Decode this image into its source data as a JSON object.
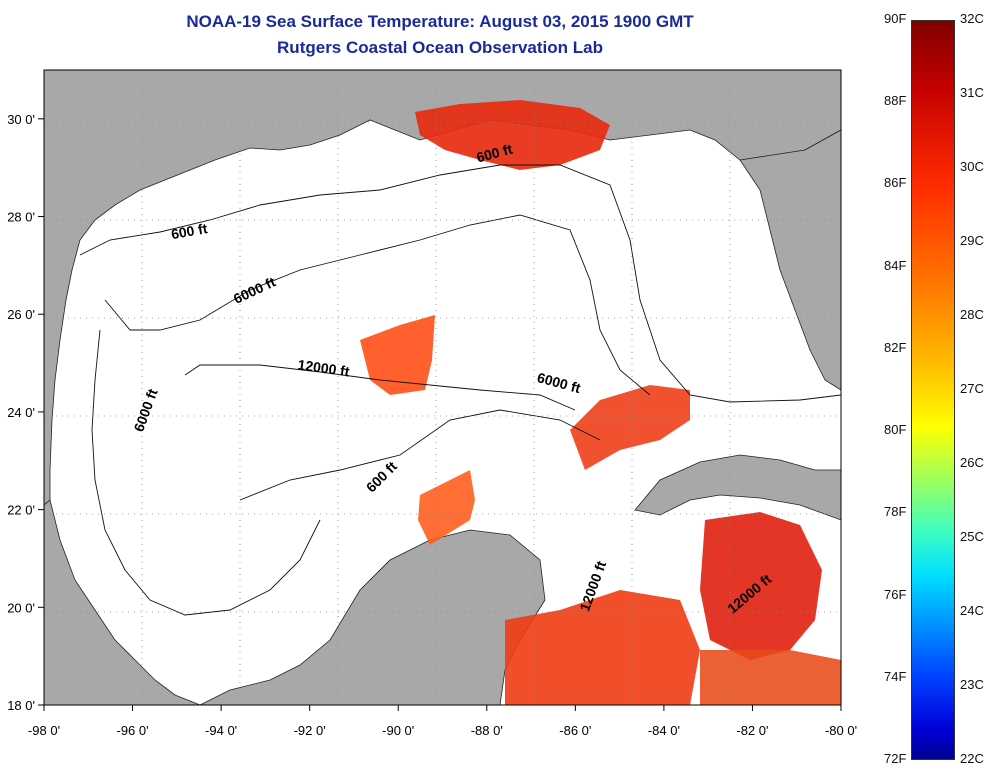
{
  "header": {
    "title": "NOAA-19 Sea Surface Temperature:  August 03, 2015 1900 GMT",
    "subtitle": "Rutgers Coastal Ocean Observation Lab"
  },
  "map": {
    "lon_range": [
      -98,
      -80
    ],
    "lat_range": [
      18,
      31
    ],
    "lon_ticks": [
      "-98 0'",
      "-96 0'",
      "-94 0'",
      "-92 0'",
      "-90 0'",
      "-88 0'",
      "-86 0'",
      "-84 0'",
      "-82 0'",
      "-80 0'"
    ],
    "lat_ticks": [
      "30 0'",
      "28 0'",
      "26 0'",
      "24 0'",
      "22 0'",
      "20 0'",
      "18 0'"
    ],
    "contour_labels": [
      {
        "text": "600 ft",
        "lon": -87.8,
        "lat": 29.2
      },
      {
        "text": "600 ft",
        "lon": -94.7,
        "lat": 27.6
      },
      {
        "text": "6000 ft",
        "lon": -93.2,
        "lat": 26.4
      },
      {
        "text": "6000 ft",
        "lon": -95.6,
        "lat": 24.0
      },
      {
        "text": "12000 ft",
        "lon": -91.7,
        "lat": 24.8
      },
      {
        "text": "6000 ft",
        "lon": -86.4,
        "lat": 24.5
      },
      {
        "text": "600 ft",
        "lon": -90.3,
        "lat": 22.6
      },
      {
        "text": "12000 ft",
        "lon": -85.5,
        "lat": 20.4
      },
      {
        "text": "12000 ft",
        "lon": -82.0,
        "lat": 20.2
      }
    ],
    "colors": {
      "land": "#a8a8a8",
      "ocean": "#ffffff",
      "grid": "#888888"
    }
  },
  "colorbar": {
    "fahrenheit": [
      "90F",
      "88F",
      "86F",
      "84F",
      "82F",
      "80F",
      "78F",
      "76F",
      "74F",
      "72F"
    ],
    "celsius": [
      "32C",
      "31C",
      "30C",
      "29C",
      "28C",
      "27C",
      "26C",
      "25C",
      "24C",
      "23C",
      "22C"
    ]
  }
}
